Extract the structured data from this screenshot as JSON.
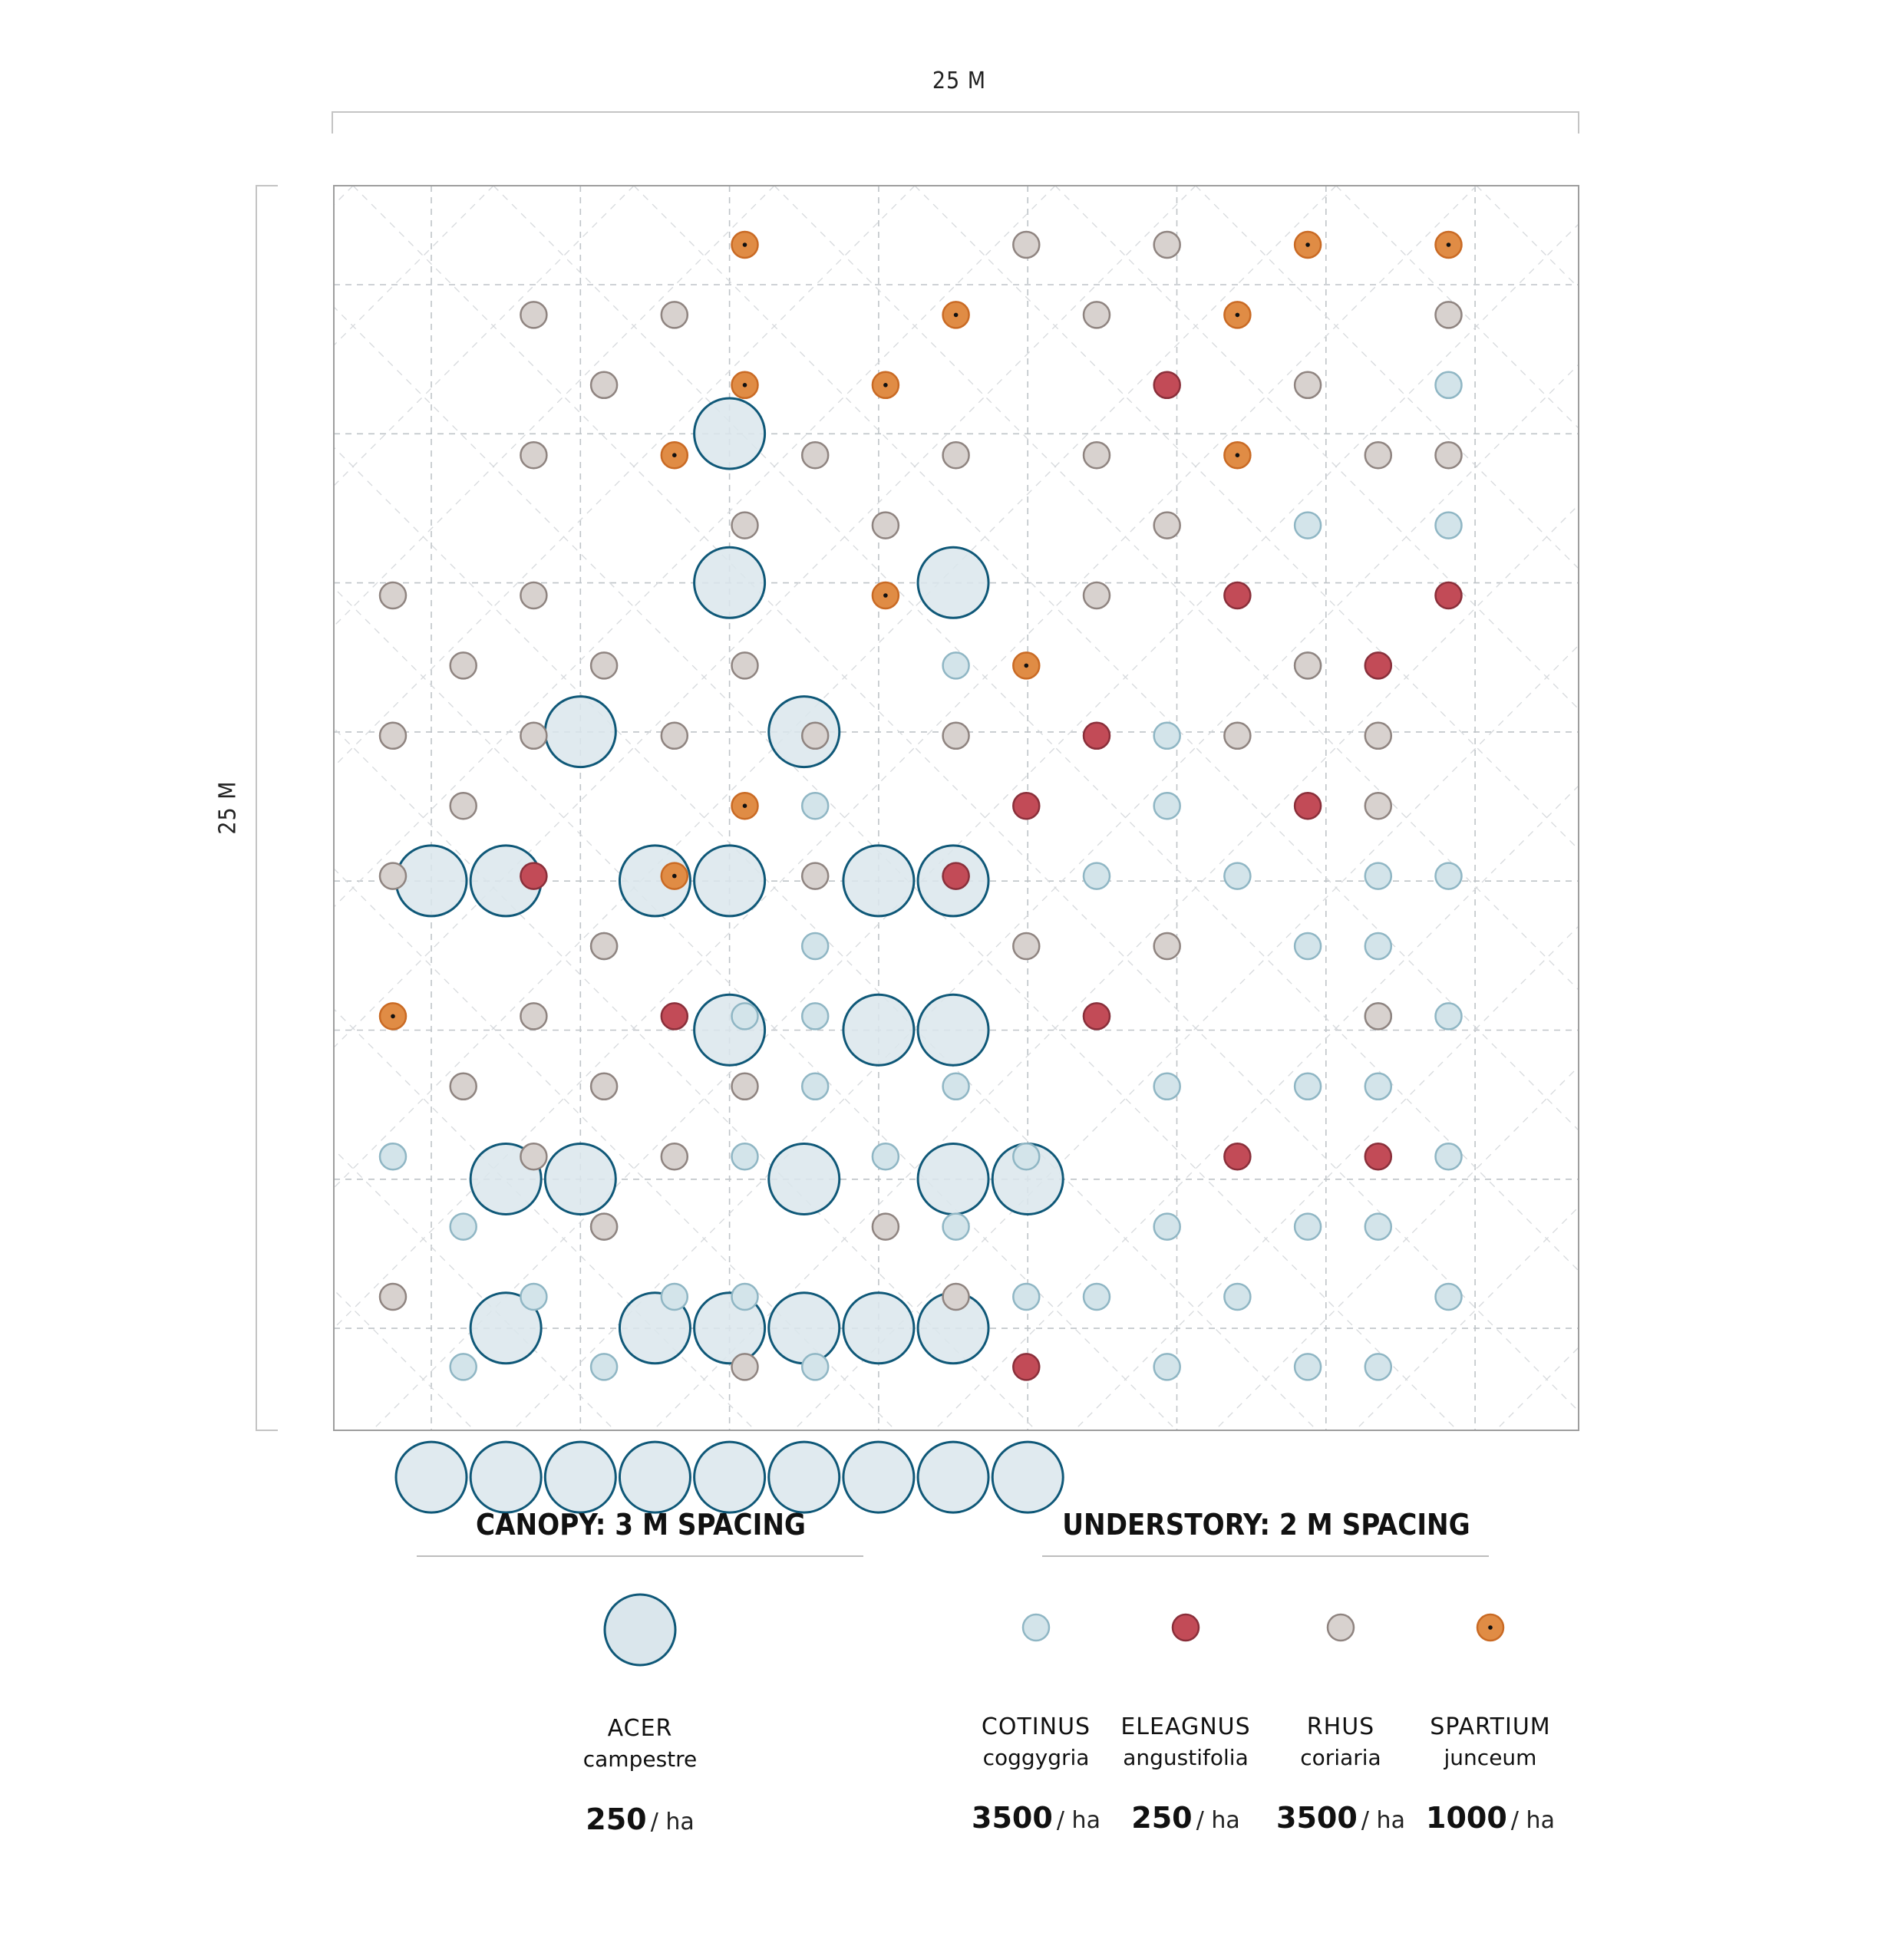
{
  "dimensions": {
    "width_label": "25 M",
    "height_label": "25 M"
  },
  "colors": {
    "acer_fill": "#dae6ec",
    "acer_stroke": "#0f5878",
    "cotinus_fill": "#d3e4ea",
    "cotinus_stroke": "#8fb6c4",
    "eleagnus_fill": "#c24b57",
    "eleagnus_stroke": "#8a2f3a",
    "rhus_fill": "#d8d2cf",
    "rhus_stroke": "#8f8480",
    "spartium_fill": "#e08c45",
    "spartium_stroke": "#c96a24",
    "grid": "#bfc4c8"
  },
  "canopy": {
    "title": "CANOPY: 3 M SPACING",
    "species": [
      {
        "key": "acer",
        "genus": "ACER",
        "epithet": "campestre",
        "density": "250",
        "unit": "/ ha"
      }
    ]
  },
  "understory": {
    "title": "UNDERSTORY: 2 M SPACING",
    "species": [
      {
        "key": "cotinus",
        "genus": "COTINUS",
        "epithet": "coggygria",
        "density": "3500",
        "unit": "/ ha"
      },
      {
        "key": "eleagnus",
        "genus": "ELEAGNUS",
        "epithet": "angustifolia",
        "density": "250",
        "unit": "/ ha"
      },
      {
        "key": "rhus",
        "genus": "RHUS",
        "epithet": "coriaria",
        "density": "3500",
        "unit": "/ ha"
      },
      {
        "key": "spartium",
        "genus": "SPARTIUM",
        "epithet": "junceum",
        "density": "1000",
        "unit": "/ ha"
      }
    ]
  },
  "canopy_trees": [
    [
      4,
      0
    ],
    [
      4,
      1
    ],
    [
      7,
      1
    ],
    [
      2,
      2
    ],
    [
      5,
      2
    ],
    [
      0,
      3
    ],
    [
      1,
      3
    ],
    [
      3,
      3
    ],
    [
      4,
      3
    ],
    [
      6,
      3
    ],
    [
      7,
      3
    ],
    [
      4,
      4
    ],
    [
      6,
      4
    ],
    [
      7,
      4
    ],
    [
      1,
      5
    ],
    [
      2,
      5
    ],
    [
      5,
      5
    ],
    [
      7,
      5
    ],
    [
      8,
      5
    ],
    [
      1,
      6
    ],
    [
      3,
      6
    ],
    [
      4,
      6
    ],
    [
      5,
      6
    ],
    [
      6,
      6
    ],
    [
      7,
      6
    ],
    [
      0,
      7
    ],
    [
      1,
      7
    ],
    [
      2,
      7
    ],
    [
      3,
      7
    ],
    [
      4,
      7
    ],
    [
      5,
      7
    ],
    [
      6,
      7
    ],
    [
      7,
      7
    ],
    [
      8,
      7
    ]
  ],
  "understory_plants": {
    "cotinus": [
      [
        15,
        2
      ],
      [
        13,
        4
      ],
      [
        15,
        4
      ],
      [
        8,
        6
      ],
      [
        13,
        6
      ],
      [
        14,
        6
      ],
      [
        11,
        7
      ],
      [
        6,
        8
      ],
      [
        11,
        8
      ],
      [
        8,
        9
      ],
      [
        10,
        9
      ],
      [
        12,
        9
      ],
      [
        14,
        9
      ],
      [
        15,
        9
      ],
      [
        3,
        10
      ],
      [
        6,
        10
      ],
      [
        13,
        10
      ],
      [
        14,
        10
      ],
      [
        5,
        11
      ],
      [
        6,
        11
      ],
      [
        10,
        11
      ],
      [
        14,
        11
      ],
      [
        15,
        11
      ],
      [
        6,
        12
      ],
      [
        8,
        12
      ],
      [
        11,
        12
      ],
      [
        13,
        12
      ],
      [
        14,
        12
      ],
      [
        0,
        13
      ],
      [
        5,
        13
      ],
      [
        7,
        13
      ],
      [
        9,
        13
      ],
      [
        15,
        13
      ],
      [
        1,
        14
      ],
      [
        3,
        14
      ],
      [
        8,
        14
      ],
      [
        11,
        14
      ],
      [
        13,
        14
      ],
      [
        14,
        14
      ],
      [
        2,
        15
      ],
      [
        4,
        15
      ],
      [
        5,
        15
      ],
      [
        9,
        15
      ],
      [
        10,
        15
      ],
      [
        12,
        15
      ],
      [
        15,
        15
      ],
      [
        1,
        16
      ],
      [
        3,
        16
      ],
      [
        6,
        16
      ],
      [
        11,
        16
      ],
      [
        13,
        16
      ],
      [
        14,
        16
      ]
    ],
    "eleagnus": [
      [
        11,
        2
      ],
      [
        12,
        5
      ],
      [
        15,
        5
      ],
      [
        14,
        6
      ],
      [
        10,
        7
      ],
      [
        9,
        8
      ],
      [
        13,
        8
      ],
      [
        2,
        9
      ],
      [
        8,
        9
      ],
      [
        4,
        11
      ],
      [
        10,
        11
      ],
      [
        12,
        13
      ],
      [
        14,
        13
      ],
      [
        9,
        16
      ]
    ],
    "rhus": [
      [
        9,
        0
      ],
      [
        11,
        0
      ],
      [
        2,
        1
      ],
      [
        4,
        1
      ],
      [
        10,
        1
      ],
      [
        15,
        1
      ],
      [
        3,
        2
      ],
      [
        13,
        2
      ],
      [
        2,
        3
      ],
      [
        6,
        3
      ],
      [
        8,
        3
      ],
      [
        10,
        3
      ],
      [
        14,
        3
      ],
      [
        15,
        3
      ],
      [
        5,
        4
      ],
      [
        7,
        4
      ],
      [
        11,
        4
      ],
      [
        0,
        5
      ],
      [
        2,
        5
      ],
      [
        10,
        5
      ],
      [
        1,
        6
      ],
      [
        3,
        6
      ],
      [
        5,
        6
      ],
      [
        13,
        6
      ],
      [
        0,
        7
      ],
      [
        2,
        7
      ],
      [
        4,
        7
      ],
      [
        6,
        7
      ],
      [
        8,
        7
      ],
      [
        12,
        7
      ],
      [
        14,
        7
      ],
      [
        1,
        8
      ],
      [
        14,
        8
      ],
      [
        0,
        9
      ],
      [
        6,
        9
      ],
      [
        3,
        10
      ],
      [
        9,
        10
      ],
      [
        11,
        10
      ],
      [
        2,
        11
      ],
      [
        14,
        11
      ],
      [
        1,
        12
      ],
      [
        3,
        12
      ],
      [
        5,
        12
      ],
      [
        2,
        13
      ],
      [
        4,
        13
      ],
      [
        3,
        14
      ],
      [
        7,
        14
      ],
      [
        0,
        15
      ],
      [
        8,
        15
      ],
      [
        5,
        16
      ]
    ],
    "spartium": [
      [
        5,
        0
      ],
      [
        13,
        0
      ],
      [
        15,
        0
      ],
      [
        8,
        1
      ],
      [
        12,
        1
      ],
      [
        5,
        2
      ],
      [
        7,
        2
      ],
      [
        4,
        3
      ],
      [
        12,
        3
      ],
      [
        7,
        5
      ],
      [
        9,
        6
      ],
      [
        5,
        8
      ],
      [
        4,
        9
      ],
      [
        0,
        11
      ]
    ]
  }
}
